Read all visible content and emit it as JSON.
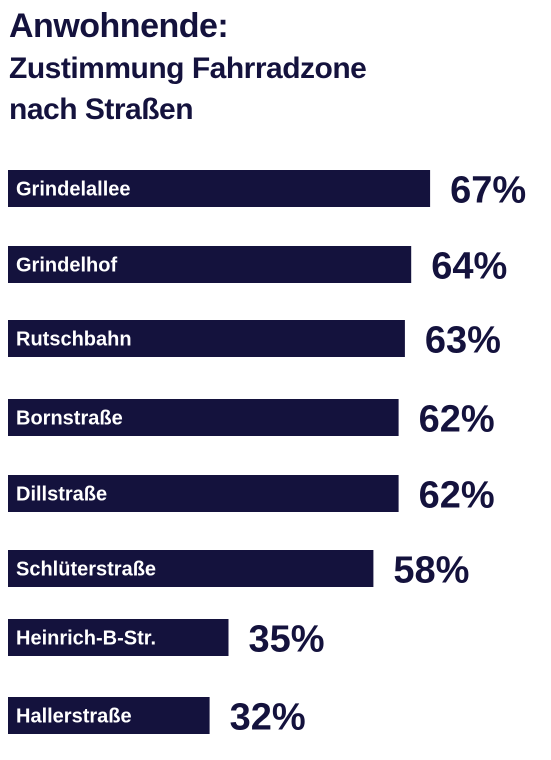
{
  "title": {
    "line1": "Anwohnende:",
    "line2": "Zustimmung Fahrradzone",
    "line3": "nach Straßen"
  },
  "chart_data": {
    "type": "bar",
    "orientation": "horizontal",
    "title": "Anwohnende: Zustimmung Fahrradzone nach Straßen",
    "categories": [
      "Grindelallee",
      "Grindelhof",
      "Rutschbahn",
      "Bornstraße",
      "Dillstraße",
      "Schlüterstraße",
      "Heinrich-B-Str.",
      "Hallerstraße"
    ],
    "values": [
      67,
      64,
      63,
      62,
      62,
      58,
      35,
      32
    ],
    "value_labels": [
      "67%",
      "64%",
      "63%",
      "62%",
      "62%",
      "58%",
      "35%",
      "32%"
    ],
    "unit": "%",
    "grid": false,
    "legend": "none",
    "colors": {
      "bar": "#14123d",
      "bar_label": "#ffffff",
      "value_label": "#14123d",
      "background": "#ffffff"
    }
  }
}
